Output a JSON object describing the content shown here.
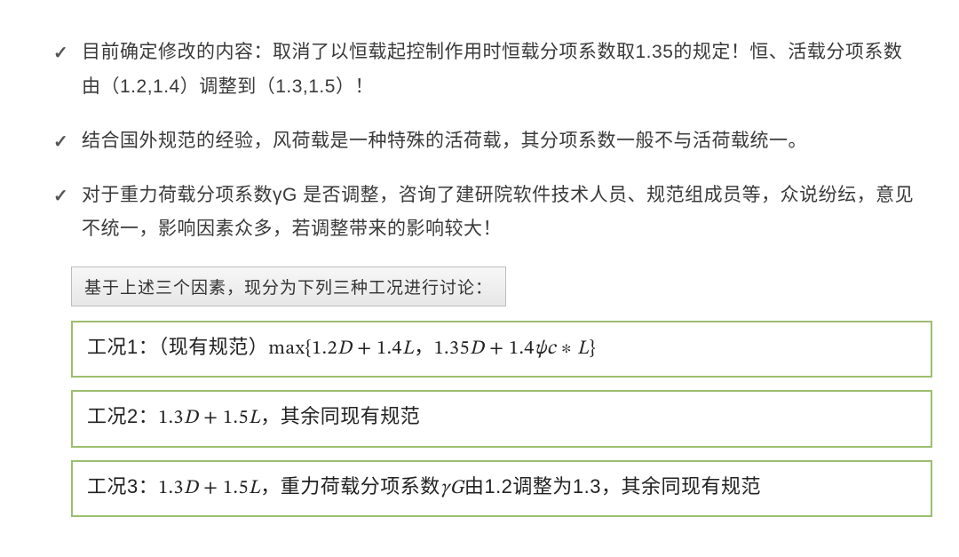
{
  "bullets": [
    "目前确定修改的内容：取消了以恒载起控制作用时恒载分项系数取1.35的规定！恒、活载分项系数由（1.2,1.4）调整到（1.3,1.5）！",
    "结合国外规范的经验，风荷载是一种特殊的活荷载，其分项系数一般不与活荷载统一。",
    "对于重力荷载分项系数γG 是否调整，咨询了建研院软件技术人员、规范组成员等，众说纷纭，意见不统一，影响因素众多，若调整带来的影响较大！"
  ],
  "subhead": "基于上述三个因素，现分为下列三种工况进行讨论：",
  "cases": {
    "case1": {
      "label": "工况1：（现有规范）",
      "prefix": "max{",
      "expr1_a": "1.2",
      "expr1_b": "1.4",
      "sep": "，",
      "expr2_a": "1.35",
      "expr2_b": "1.4",
      "psi": "ψc",
      "suffix": "}",
      "D": "D",
      "L": "L",
      "plus": " + ",
      "star": " ∗ "
    },
    "case2": {
      "label": "工况2：",
      "a": "1.3",
      "b": "1.5",
      "D": "D",
      "L": "L",
      "plus": " + ",
      "tail": "，其余同现有规范"
    },
    "case3": {
      "label": "工况3：",
      "a": "1.3",
      "b": "1.5",
      "D": "D",
      "L": "L",
      "plus": " + ",
      "mid1": "，重力荷载分项系数",
      "gamma": "γG",
      "mid2": "由1.2调整为1.3，其余同现有规范"
    }
  },
  "colors": {
    "case_border": "#9cbf6f",
    "text": "#333333",
    "bg": "#ffffff"
  }
}
